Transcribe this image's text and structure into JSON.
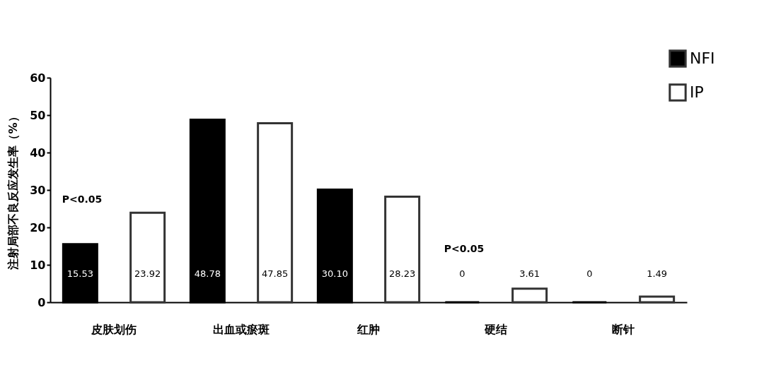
{
  "chart_data": {
    "type": "bar",
    "ylabel": "注射局部不良反应发生率（%）",
    "categories": [
      "皮肤划伤",
      "出血或瘀斑",
      "红肿",
      "硬结",
      "断针"
    ],
    "series": [
      {
        "name": "NFI",
        "color": "#000000",
        "values": [
          15.53,
          48.78,
          30.1,
          0,
          0
        ],
        "value_labels": [
          "15.53",
          "48.78",
          "30.10",
          "0",
          "0"
        ]
      },
      {
        "name": "IP",
        "color": "#ffffff",
        "values": [
          23.92,
          47.85,
          28.23,
          3.61,
          1.49
        ],
        "value_labels": [
          "23.92",
          "47.85",
          "28.23",
          "3.61",
          "1.49"
        ]
      }
    ],
    "ylim": [
      0,
      60
    ],
    "yticks": [
      0,
      10,
      20,
      30,
      40,
      50,
      60
    ],
    "grid": false,
    "legend": "top right",
    "annotations": [
      "P<0.05",
      "P<0.05"
    ]
  }
}
